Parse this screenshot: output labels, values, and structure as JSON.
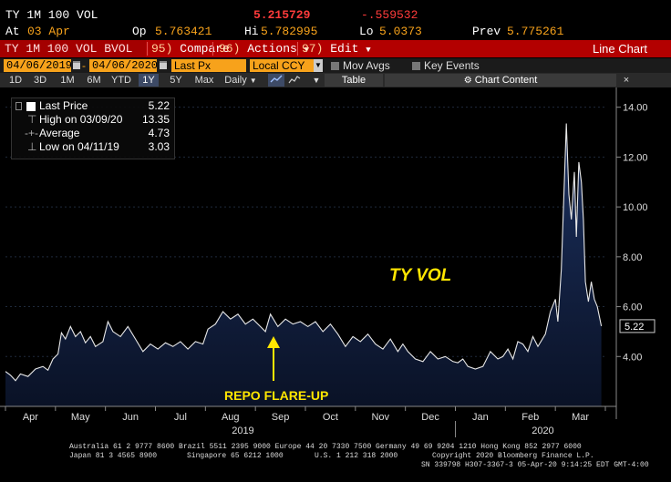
{
  "quote": {
    "name": "TY 1M 100 VOL",
    "last": "5.215729",
    "change": "-.559532",
    "at_label": "At",
    "date": "03 Apr",
    "open_label": "Op",
    "open": "5.763421",
    "high_label": "Hi",
    "high": "5.782995",
    "low_label": "Lo",
    "low": "5.0373",
    "prev_label": "Prev",
    "prev": "5.775261"
  },
  "function_bar": {
    "ticker": "TY 1M 100 VOL BVOL",
    "compare_num": "95)",
    "compare": "Compare",
    "actions_num": "96)",
    "actions": "Actions",
    "edit_num": "97)",
    "edit": "Edit",
    "view_title": "Line Chart"
  },
  "settings": {
    "start_date": "04/06/2019",
    "end_date": "04/06/2020",
    "field": "Last Px",
    "currency": "Local CCY",
    "mov_avgs": "Mov Avgs",
    "key_events": "Key Events"
  },
  "periods": {
    "items": [
      "1D",
      "3D",
      "1M",
      "6M",
      "YTD",
      "1Y",
      "5Y",
      "Max"
    ],
    "selected": "1Y",
    "frequency": "Daily",
    "table": "Table",
    "chart_content": "Chart Content"
  },
  "legend": {
    "last_price_label": "Last Price",
    "last_price_value": "5.22",
    "high_label": "High on 03/09/20",
    "high_value": "13.35",
    "average_label": "Average",
    "average_value": "4.73",
    "low_label": "Low on 04/11/19",
    "low_value": "3.03"
  },
  "annotations": {
    "ty_vol": "TY VOL",
    "repo": "REPO FLARE-UP"
  },
  "colors": {
    "line": "#e8e8e8",
    "area_top": "#1c3160",
    "area_bottom": "#0a1226",
    "annotation": "#ffe600",
    "amber": "#f7a21b",
    "function_bar": "#b30000"
  },
  "chart_data": {
    "type": "area",
    "title": "",
    "xlabel": "",
    "ylabel": "",
    "ylim": [
      2.0,
      14.5
    ],
    "y_ticks": [
      "4.00",
      "6.00",
      "8.00",
      "10.00",
      "12.00",
      "14.00"
    ],
    "x_month_labels": [
      "Apr",
      "May",
      "Jun",
      "Jul",
      "Aug",
      "Sep",
      "Oct",
      "Nov",
      "Dec",
      "Jan",
      "Feb",
      "Mar"
    ],
    "x_year_labels": [
      "2019",
      "2020"
    ],
    "last_value_label": "5.22",
    "months_index": [
      0,
      1,
      2,
      3,
      4,
      5,
      6,
      7,
      8,
      9,
      10,
      11,
      12
    ],
    "series": [
      {
        "values": [
          [
            0.0,
            3.4
          ],
          [
            0.1,
            3.25
          ],
          [
            0.2,
            3.03
          ],
          [
            0.3,
            3.3
          ],
          [
            0.45,
            3.2
          ],
          [
            0.6,
            3.5
          ],
          [
            0.75,
            3.6
          ],
          [
            0.85,
            3.45
          ],
          [
            0.95,
            3.9
          ],
          [
            1.05,
            4.1
          ],
          [
            1.12,
            4.95
          ],
          [
            1.2,
            4.7
          ],
          [
            1.3,
            5.2
          ],
          [
            1.4,
            4.8
          ],
          [
            1.5,
            5.0
          ],
          [
            1.6,
            4.55
          ],
          [
            1.7,
            4.8
          ],
          [
            1.8,
            4.4
          ],
          [
            1.95,
            4.6
          ],
          [
            2.05,
            5.4
          ],
          [
            2.15,
            5.0
          ],
          [
            2.3,
            4.8
          ],
          [
            2.45,
            5.2
          ],
          [
            2.6,
            4.7
          ],
          [
            2.75,
            4.2
          ],
          [
            2.9,
            4.5
          ],
          [
            3.05,
            4.3
          ],
          [
            3.2,
            4.55
          ],
          [
            3.35,
            4.4
          ],
          [
            3.5,
            4.6
          ],
          [
            3.65,
            4.3
          ],
          [
            3.8,
            4.6
          ],
          [
            3.95,
            4.5
          ],
          [
            4.05,
            5.1
          ],
          [
            4.2,
            5.3
          ],
          [
            4.35,
            5.8
          ],
          [
            4.5,
            5.5
          ],
          [
            4.65,
            5.7
          ],
          [
            4.8,
            5.3
          ],
          [
            4.95,
            5.5
          ],
          [
            5.1,
            5.2
          ],
          [
            5.2,
            5.0
          ],
          [
            5.3,
            5.7
          ],
          [
            5.45,
            5.2
          ],
          [
            5.6,
            5.5
          ],
          [
            5.75,
            5.3
          ],
          [
            5.9,
            5.4
          ],
          [
            6.05,
            5.2
          ],
          [
            6.2,
            5.4
          ],
          [
            6.35,
            5.0
          ],
          [
            6.5,
            5.3
          ],
          [
            6.65,
            4.9
          ],
          [
            6.8,
            4.4
          ],
          [
            6.95,
            4.8
          ],
          [
            7.1,
            4.6
          ],
          [
            7.25,
            4.9
          ],
          [
            7.4,
            4.5
          ],
          [
            7.55,
            4.3
          ],
          [
            7.7,
            4.7
          ],
          [
            7.85,
            4.2
          ],
          [
            7.95,
            4.5
          ],
          [
            8.05,
            4.2
          ],
          [
            8.2,
            3.9
          ],
          [
            8.35,
            3.8
          ],
          [
            8.5,
            4.2
          ],
          [
            8.65,
            3.9
          ],
          [
            8.8,
            4.0
          ],
          [
            8.95,
            3.8
          ],
          [
            9.05,
            3.75
          ],
          [
            9.15,
            3.9
          ],
          [
            9.25,
            3.6
          ],
          [
            9.4,
            3.5
          ],
          [
            9.55,
            3.6
          ],
          [
            9.7,
            4.2
          ],
          [
            9.85,
            3.9
          ],
          [
            9.95,
            4.0
          ],
          [
            10.05,
            4.3
          ],
          [
            10.15,
            3.9
          ],
          [
            10.25,
            4.6
          ],
          [
            10.35,
            4.5
          ],
          [
            10.45,
            4.2
          ],
          [
            10.55,
            4.8
          ],
          [
            10.65,
            4.4
          ],
          [
            10.8,
            4.9
          ],
          [
            10.9,
            5.8
          ],
          [
            11.0,
            6.3
          ],
          [
            11.05,
            5.4
          ],
          [
            11.12,
            7.5
          ],
          [
            11.18,
            11.0
          ],
          [
            11.22,
            13.35
          ],
          [
            11.27,
            10.5
          ],
          [
            11.32,
            9.5
          ],
          [
            11.38,
            11.4
          ],
          [
            11.42,
            8.8
          ],
          [
            11.47,
            11.8
          ],
          [
            11.52,
            11.0
          ],
          [
            11.56,
            9.5
          ],
          [
            11.6,
            7.0
          ],
          [
            11.66,
            6.2
          ],
          [
            11.72,
            7.0
          ],
          [
            11.78,
            6.3
          ],
          [
            11.84,
            6.0
          ],
          [
            11.92,
            5.22
          ]
        ]
      }
    ]
  },
  "footer": {
    "line1": "Australia 61 2 9777 8600 Brazil 5511 2395 9000 Europe 44 20 7330 7500 Germany 49 69 9204 1210 Hong Kong 852 2977 6000",
    "line2a": "Japan 81 3 4565 8900",
    "line2b": "Singapore 65 6212 1000",
    "line2c": "U.S. 1 212 318 2000",
    "line2d": "Copyright 2020 Bloomberg Finance L.P.",
    "line3": "SN 339798 H307-3367-3 05-Apr-20  9:14:25 EDT  GMT-4:00"
  }
}
